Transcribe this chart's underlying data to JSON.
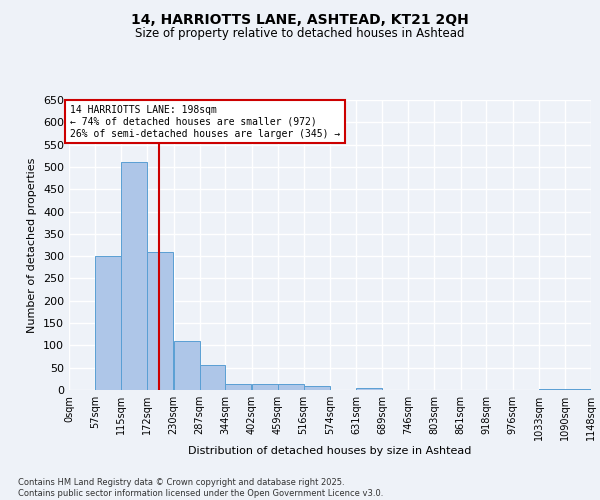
{
  "title1": "14, HARRIOTTS LANE, ASHTEAD, KT21 2QH",
  "title2": "Size of property relative to detached houses in Ashtead",
  "xlabel": "Distribution of detached houses by size in Ashtead",
  "ylabel": "Number of detached properties",
  "bin_edges": [
    0,
    57,
    115,
    172,
    230,
    287,
    344,
    402,
    459,
    516,
    574,
    631,
    689,
    746,
    803,
    861,
    918,
    976,
    1033,
    1090,
    1148
  ],
  "bar_heights": [
    0,
    300,
    510,
    310,
    110,
    55,
    13,
    13,
    13,
    8,
    0,
    5,
    0,
    0,
    0,
    0,
    0,
    0,
    3,
    3
  ],
  "bar_color": "#aec6e8",
  "bar_edge_color": "#5a9fd4",
  "property_line_x": 198,
  "property_line_color": "#cc0000",
  "annotation_text": "14 HARRIOTTS LANE: 198sqm\n← 74% of detached houses are smaller (972)\n26% of semi-detached houses are larger (345) →",
  "annotation_box_color": "#cc0000",
  "annotation_box_fill": "#ffffff",
  "ylim": [
    0,
    650
  ],
  "yticks": [
    0,
    50,
    100,
    150,
    200,
    250,
    300,
    350,
    400,
    450,
    500,
    550,
    600,
    650
  ],
  "background_color": "#eef2f8",
  "grid_color": "#ffffff",
  "footer1": "Contains HM Land Registry data © Crown copyright and database right 2025.",
  "footer2": "Contains public sector information licensed under the Open Government Licence v3.0."
}
